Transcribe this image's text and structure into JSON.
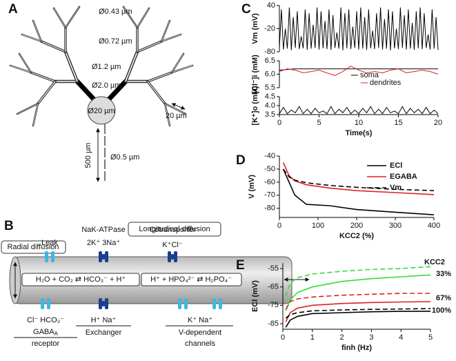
{
  "panel_a": {
    "label": "A",
    "branch_diameters": [
      "Ø0.43 µm",
      "Ø0.72 µm",
      "Ø1.2 µm",
      "Ø2.0 µm"
    ],
    "soma_diameter": "Ø20 µm",
    "scale_bar": "20 µm",
    "axon_length": "500 µm",
    "axon_diameter": "Ø0.5 µm"
  },
  "panel_b": {
    "label": "B",
    "radial": "Radial diffusion",
    "longitudinal": "Longitudinal diffusion",
    "leak": "Leak",
    "nak": {
      "name": "NaK-ATPase",
      "ions": "2K⁺ 3Na⁺"
    },
    "cotransporter": {
      "name": "Cotransporter",
      "ions": "K⁺Cl⁻"
    },
    "reaction_1": "H₂O + CO₂ ⇄ HCO₃⁻ + H⁺",
    "reaction_2": "H⁺ + HPO₄²⁻ ⇄ H₂PO₄⁻",
    "gaba": {
      "ions": "Cl⁻ HCO₃⁻",
      "name": "GABA",
      "sub": "A",
      "line2": "receptor"
    },
    "exchanger": {
      "ions": "H⁺ Na⁺",
      "name": "Exchanger"
    },
    "vdep": {
      "ions": "K⁺   Na⁺",
      "name": "V-dependent",
      "line2": "channels"
    }
  },
  "chart_data": [
    {
      "type": "line",
      "label": "C",
      "ylabel": "Vm (mV)",
      "xlim": [
        0,
        20
      ],
      "ylim": [
        -80,
        40
      ],
      "yticks": [
        40,
        -20,
        -80
      ],
      "series": [
        {
          "color": "#000000",
          "x": [
            0,
            0.25,
            0.5,
            0.75,
            1,
            1.25,
            1.5,
            1.75,
            2,
            2.25,
            2.5,
            2.75,
            3,
            3.25,
            3.5,
            3.75,
            4,
            4.25,
            4.5,
            4.75,
            5,
            5.25,
            5.5,
            5.75,
            6,
            6.25,
            6.5,
            6.75,
            7,
            7.25,
            7.5,
            7.75,
            8,
            8.25,
            8.5,
            8.75,
            9,
            9.25,
            9.5,
            9.75,
            10,
            10.25,
            10.5,
            10.75,
            11,
            11.25,
            11.5,
            11.75,
            12,
            12.25,
            12.5,
            12.75,
            13,
            13.25,
            13.5,
            13.75,
            14,
            14.25,
            14.5,
            14.75,
            15,
            15.25,
            15.5,
            15.75,
            16,
            16.25,
            16.5,
            16.75,
            17,
            17.25,
            17.5,
            17.75,
            18,
            18.25,
            18.5,
            18.75,
            19,
            19.25,
            19.5,
            19.75,
            20
          ],
          "values": [
            -70,
            30,
            -74,
            -20,
            -72,
            35,
            -76,
            10,
            -70,
            25,
            -73,
            -40,
            -71,
            30,
            -75,
            20,
            -72,
            -10,
            -70,
            35,
            -74,
            25,
            -71,
            0,
            -73,
            30,
            -75,
            15,
            -70,
            -30,
            -72,
            35,
            -76,
            20,
            -71,
            30,
            -73,
            -15,
            -70,
            25,
            -74,
            35,
            -72,
            10,
            -75,
            30,
            -71,
            -25,
            -73,
            20,
            -70,
            35,
            -74,
            5,
            -72,
            30,
            -76,
            25,
            -71,
            -20,
            -73,
            35,
            -70,
            15,
            -74,
            30,
            -72,
            -5,
            -75,
            25,
            -71,
            35,
            -73,
            20,
            -70,
            -35,
            -74,
            30,
            -72,
            10,
            -75
          ]
        }
      ]
    },
    {
      "type": "line",
      "ylabel": "[Cl⁻]i (mM)",
      "xlim": [
        0,
        20
      ],
      "ylim": [
        5.5,
        6.5
      ],
      "yticks": [
        6.5,
        {
          "value": 6,
          "label": "6.0"
        },
        5.5
      ],
      "series": [
        {
          "name": "soma",
          "color": "#000000",
          "x": [
            0,
            2,
            4,
            6,
            8,
            10,
            12,
            14,
            16,
            18,
            20
          ],
          "values": [
            6.15,
            6.2,
            6.2,
            6.2,
            6.2,
            6.2,
            6.2,
            6.2,
            6.2,
            6.2,
            6.2
          ]
        },
        {
          "name": "dendrites",
          "color": "#dd2020",
          "x": [
            0,
            1,
            2,
            3,
            4,
            5,
            6,
            7,
            8,
            9,
            10,
            11,
            12,
            13,
            14,
            15,
            16,
            17,
            18,
            19,
            20
          ],
          "values": [
            6.1,
            6.2,
            6.15,
            6.05,
            6.1,
            6.15,
            6.05,
            5.95,
            6.1,
            6.3,
            6.15,
            6.05,
            6.1,
            6.05,
            6.15,
            6.2,
            6.05,
            6.1,
            6.15,
            6.1,
            6.0
          ]
        }
      ]
    },
    {
      "type": "line",
      "ylabel": "[K⁺]o (mM)",
      "xlabel": "Time(s)",
      "xlim": [
        0,
        20
      ],
      "xticks": [
        0,
        5,
        10,
        15,
        20
      ],
      "ylim": [
        3.5,
        4.5
      ],
      "yticks": [
        4.5,
        {
          "value": 4,
          "label": "4.0"
        },
        3.5
      ],
      "series": [
        {
          "color": "#000000",
          "x": [
            0,
            0.5,
            1,
            1.5,
            2,
            2.5,
            3,
            3.5,
            4,
            4.5,
            5,
            5.5,
            6,
            6.5,
            7,
            7.5,
            8,
            8.5,
            9,
            9.5,
            10,
            10.5,
            11,
            11.5,
            12,
            12.5,
            13,
            13.5,
            14,
            14.5,
            15,
            15.5,
            16,
            16.5,
            17,
            17.5,
            18,
            18.5,
            19,
            19.5,
            20
          ],
          "values": [
            3.55,
            3.9,
            3.55,
            3.75,
            3.6,
            3.95,
            3.55,
            3.8,
            3.55,
            3.85,
            3.6,
            3.7,
            3.55,
            3.95,
            3.55,
            3.8,
            3.6,
            3.9,
            3.55,
            3.75,
            3.55,
            3.85,
            3.6,
            3.95,
            3.55,
            3.8,
            3.55,
            3.9,
            3.6,
            3.7,
            3.55,
            3.95,
            3.55,
            3.85,
            3.6,
            3.8,
            3.55,
            3.9,
            3.55,
            3.75,
            3.55
          ]
        }
      ]
    },
    {
      "type": "line",
      "label": "D",
      "xlabel": "KCC2 (%)",
      "ylabel": "V (mV)",
      "xlim": [
        0,
        400
      ],
      "xticks": [
        0,
        100,
        200,
        300,
        400
      ],
      "ylim": [
        -87,
        -40
      ],
      "yticks": [
        -40,
        -50,
        -60,
        -70,
        -80
      ],
      "x": [
        10,
        25,
        40,
        70,
        130,
        200,
        300,
        400
      ],
      "series": [
        {
          "name": "ECl",
          "color": "#000000",
          "values": [
            -50,
            -60,
            -70,
            -77,
            -78,
            -81,
            -83,
            -85
          ]
        },
        {
          "name": "EGABA",
          "color": "#dd2020",
          "values": [
            -45,
            -55,
            -59,
            -62,
            -64.5,
            -66.5,
            -68,
            -69.5
          ]
        },
        {
          "name": "Vm",
          "color": "#000000",
          "dash": true,
          "values": [
            -50,
            -56,
            -58.5,
            -60.5,
            -62.5,
            -64,
            -65.5,
            -66.5
          ]
        }
      ]
    },
    {
      "type": "line",
      "label": "E",
      "xlabel": "finh (Hz)",
      "ylabel": "ECl (mV)",
      "xlim": [
        0,
        5
      ],
      "xticks": [
        0,
        1,
        2,
        3,
        4,
        5
      ],
      "ylim": [
        -88,
        -52
      ],
      "yticks": [
        -55,
        -65,
        -75,
        -85
      ],
      "x": [
        0.1,
        0.25,
        0.5,
        1,
        2,
        3,
        4,
        5
      ],
      "annotations": [
        {
          "text": "KCC2"
        },
        {
          "text": "33%"
        },
        {
          "text": "67%"
        },
        {
          "text": "100%"
        }
      ],
      "series": [
        {
          "color": "#33dd33",
          "dash": true,
          "values": [
            -70,
            -63,
            -60,
            -58,
            -56.5,
            -55.5,
            -55,
            -54
          ]
        },
        {
          "color": "#33dd33",
          "values": [
            -78,
            -72,
            -68,
            -65,
            -62,
            -60.5,
            -59.5,
            -58.5
          ]
        },
        {
          "color": "#dd2020",
          "dash": true,
          "values": [
            -77,
            -73,
            -71.5,
            -70.5,
            -69.5,
            -69,
            -68.5,
            -68.5
          ]
        },
        {
          "color": "#dd2020",
          "values": [
            -84,
            -79,
            -76.5,
            -75,
            -74,
            -73.5,
            -73.2,
            -73
          ]
        },
        {
          "color": "#000000",
          "dash": true,
          "values": [
            -82,
            -80,
            -79,
            -78,
            -77.5,
            -77.2,
            -77,
            -76.8
          ]
        },
        {
          "color": "#000000",
          "values": [
            -87,
            -83,
            -81,
            -79.5,
            -79,
            -78.5,
            -78.3,
            -78.2
          ]
        }
      ]
    }
  ]
}
